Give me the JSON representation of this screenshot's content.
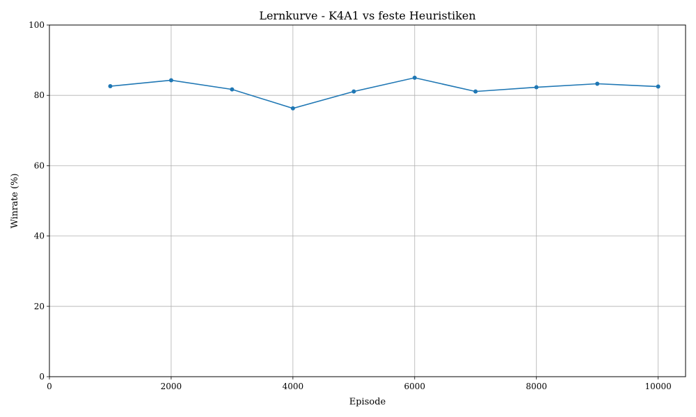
{
  "chart_data": {
    "type": "line",
    "title": "Lernkurve - K4A1 vs feste Heuristiken",
    "xlabel": "Episode",
    "ylabel": "Winrate (%)",
    "xlim": [
      0,
      10450
    ],
    "ylim": [
      0,
      100
    ],
    "xticks": [
      0,
      2000,
      4000,
      6000,
      8000,
      10000
    ],
    "yticks": [
      0,
      20,
      40,
      60,
      80,
      100
    ],
    "grid": true,
    "series": [
      {
        "color": "#1f77b4",
        "marker": "circle",
        "x": [
          1000,
          2000,
          3000,
          4000,
          5000,
          6000,
          7000,
          8000,
          9000,
          10000
        ],
        "y": [
          82.6,
          84.3,
          81.7,
          76.3,
          81.1,
          85.0,
          81.1,
          82.3,
          83.3,
          82.5
        ]
      }
    ]
  }
}
